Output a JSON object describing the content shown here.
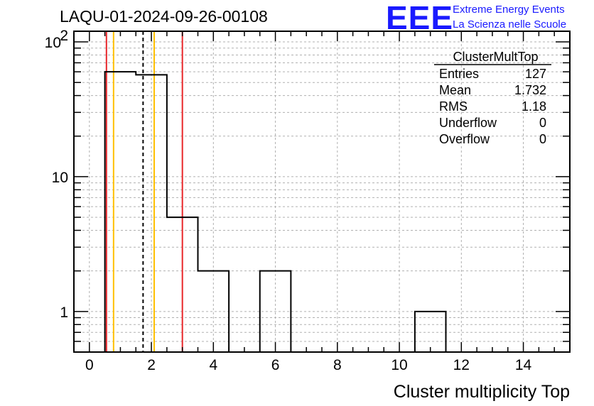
{
  "title": "LAQU-01-2024-09-26-00108",
  "logo": {
    "mark": "EEE",
    "line1": "Extreme Energy Events",
    "line2": "La Scienza nelle Scuole",
    "color": "#1a1aff"
  },
  "stats_box": {
    "name": "ClusterMultTop",
    "rows": [
      {
        "label": "Entries",
        "value": "127"
      },
      {
        "label": "Mean",
        "value": "1.732"
      },
      {
        "label": "RMS",
        "value": "1.18"
      },
      {
        "label": "Underflow",
        "value": "0"
      },
      {
        "label": "Overflow",
        "value": "0"
      }
    ]
  },
  "chart_data": {
    "type": "histogram",
    "xlabel": "Cluster multiplicity Top",
    "ylabel": "",
    "xlim": [
      -0.5,
      15.5
    ],
    "ylim": [
      0.5,
      120
    ],
    "yscale": "log",
    "grid": true,
    "x_ticks": [
      "0",
      "2",
      "4",
      "6",
      "8",
      "10",
      "12",
      "14"
    ],
    "y_ticks": [
      {
        "value": 1,
        "label": "1",
        "sup": ""
      },
      {
        "value": 10,
        "label": "10",
        "sup": ""
      },
      {
        "value": 100,
        "label": "10",
        "sup": "2"
      }
    ],
    "bins": [
      {
        "low": 0.5,
        "high": 1.5,
        "count": 60
      },
      {
        "low": 1.5,
        "high": 2.5,
        "count": 57
      },
      {
        "low": 2.5,
        "high": 3.5,
        "count": 5
      },
      {
        "low": 3.5,
        "high": 4.5,
        "count": 2
      },
      {
        "low": 5.5,
        "high": 6.5,
        "count": 2
      },
      {
        "low": 10.5,
        "high": 11.5,
        "count": 1
      }
    ],
    "markers": [
      {
        "x": 0.55,
        "style": "solid",
        "color": "#e8262a"
      },
      {
        "x": 0.78,
        "style": "solid",
        "color": "#ffc000"
      },
      {
        "x": 1.732,
        "style": "dashed",
        "color": "#000000"
      },
      {
        "x": 2.09,
        "style": "solid",
        "color": "#ffc000"
      },
      {
        "x": 3.0,
        "style": "solid",
        "color": "#e8262a"
      }
    ]
  }
}
